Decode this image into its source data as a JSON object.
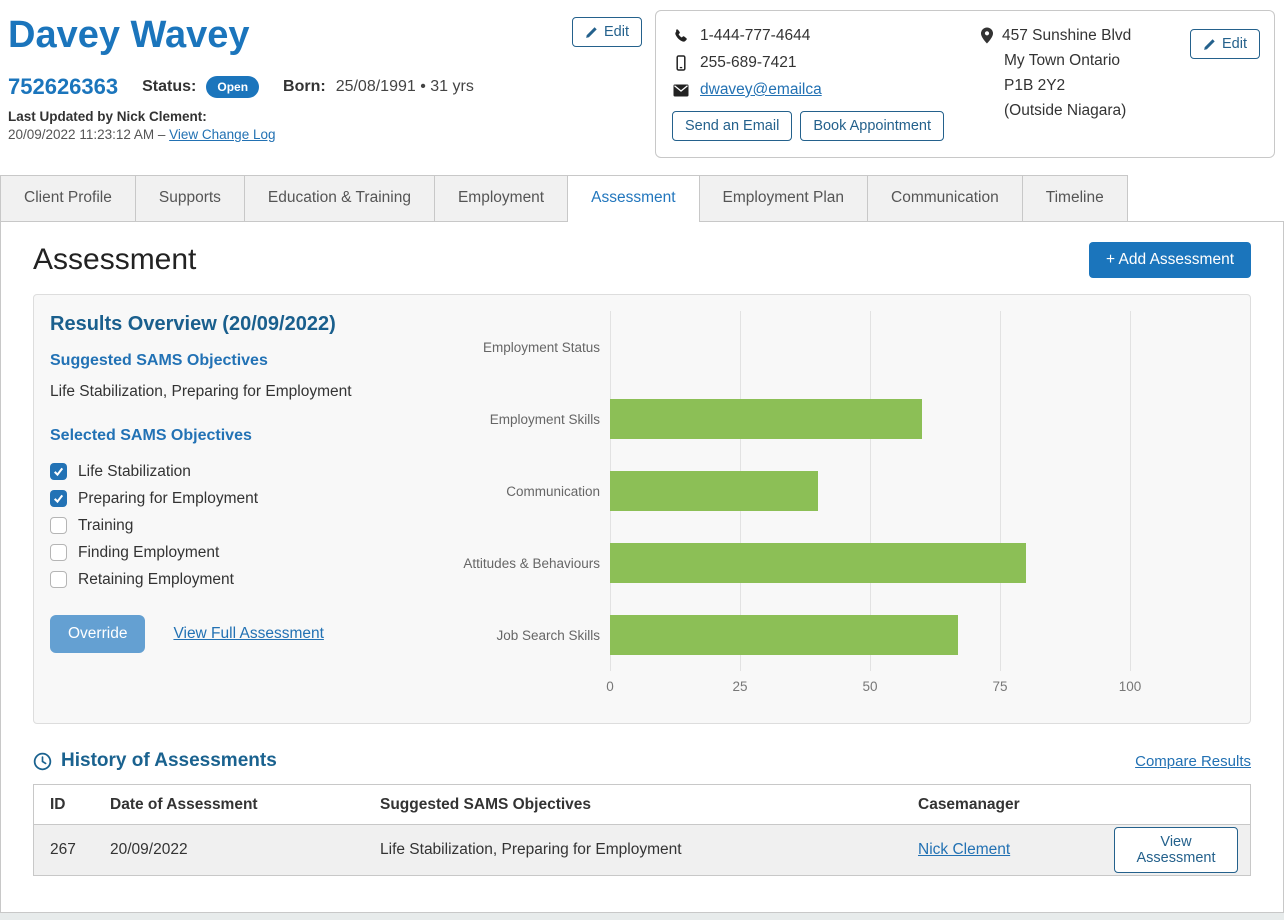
{
  "colors": {
    "brand_blue": "#1b75bc",
    "section_blue": "#2272b5",
    "link_blue": "#2271b3",
    "heading_teal_blue": "#1a5f8d",
    "history_heading_blue": "#1a628f",
    "bar_green": "#8cbf56",
    "override_blue": "#64a0d2",
    "outline_navy": "#24618c",
    "tab_active_blue": "#2176bd"
  },
  "header": {
    "client_name": "Davey Wavey",
    "client_id": "752626363",
    "status_label": "Status:",
    "status_value": "Open",
    "born_label": "Born:",
    "born_value": "25/08/1991 • 31 yrs",
    "last_updated_label": "Last Updated by Nick Clement:",
    "last_updated_prefix": "20/09/2022 11:23:12 AM – ",
    "change_log_link": "View Change Log",
    "edit_button": "Edit"
  },
  "contact_card": {
    "phone": "1-444-777-4644",
    "mobile": "255-689-7421",
    "email": "dwavey@emailca",
    "send_email_button": "Send an Email",
    "book_appointment_button": "Book Appointment",
    "address_line1": "457 Sunshine Blvd",
    "address_line2": "My Town Ontario",
    "address_line3": "P1B 2Y2",
    "address_line4": "(Outside Niagara)",
    "edit_button": "Edit"
  },
  "tabs": {
    "items": [
      {
        "label": "Client Profile",
        "active": false
      },
      {
        "label": "Supports",
        "active": false
      },
      {
        "label": "Education & Training",
        "active": false
      },
      {
        "label": "Employment",
        "active": false
      },
      {
        "label": "Assessment",
        "active": true
      },
      {
        "label": "Employment Plan",
        "active": false
      },
      {
        "label": "Communication",
        "active": false
      },
      {
        "label": "Timeline",
        "active": false
      }
    ]
  },
  "assessment": {
    "page_title": "Assessment",
    "add_button": "+ Add Assessment",
    "results": {
      "title": "Results Overview (20/09/2022)",
      "suggested_heading": "Suggested SAMS Objectives",
      "suggested_value": "Life Stabilization, Preparing for Employment",
      "selected_heading": "Selected SAMS Objectives",
      "checkboxes": [
        {
          "label": "Life Stabilization",
          "checked": true
        },
        {
          "label": "Preparing for Employment",
          "checked": true
        },
        {
          "label": "Training",
          "checked": false
        },
        {
          "label": "Finding Employment",
          "checked": false
        },
        {
          "label": "Retaining Employment",
          "checked": false
        }
      ],
      "override_button": "Override",
      "view_full_link": "View Full Assessment"
    }
  },
  "chart_data": {
    "type": "bar",
    "orientation": "horizontal",
    "categories": [
      "Employment Status",
      "Employment Skills",
      "Communication",
      "Attitudes & Behaviours",
      "Job Search Skills"
    ],
    "values": [
      0,
      60,
      40,
      80,
      67
    ],
    "title": "",
    "xlabel": "",
    "ylabel": "",
    "xlim": [
      0,
      120
    ],
    "ticks": [
      0,
      25,
      50,
      75,
      100
    ],
    "bar_color": "#8cbf56",
    "grid": true,
    "legend": false
  },
  "history": {
    "title": "History of Assessments",
    "compare_link": "Compare Results",
    "columns": [
      "ID",
      "Date of Assessment",
      "Suggested SAMS Objectives",
      "Casemanager",
      ""
    ],
    "rows": [
      {
        "id": "267",
        "date": "20/09/2022",
        "objectives": "Life Stabilization, Preparing for Employment",
        "casemanager": "Nick Clement",
        "action_button": "View Assessment"
      }
    ]
  }
}
